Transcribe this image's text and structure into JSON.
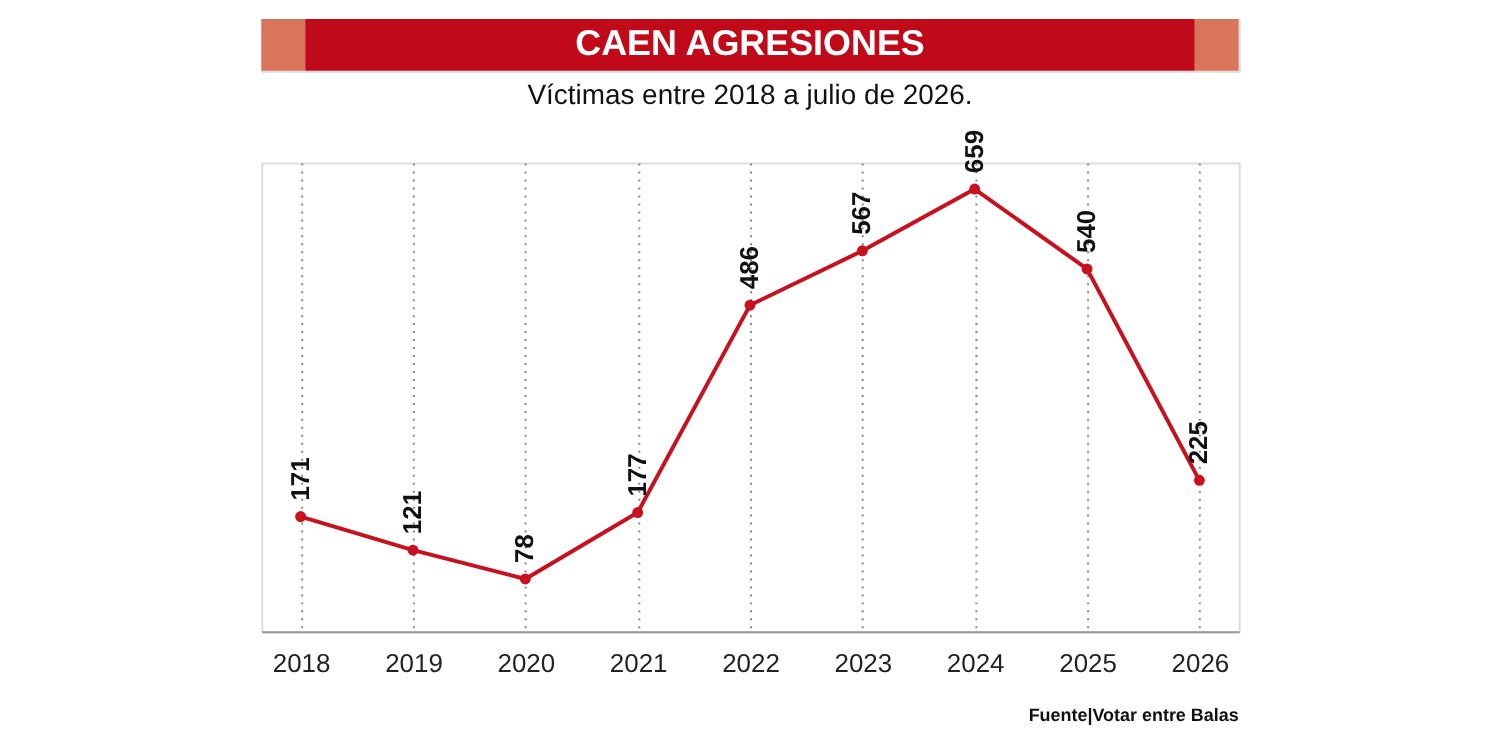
{
  "chart_data": {
    "type": "line",
    "title": "CAEN AGRESIONES",
    "subtitle": "Víctimas entre 2018 a julio de 2026.",
    "categories": [
      "2018",
      "2019",
      "2020",
      "2021",
      "2022",
      "2023",
      "2024",
      "2025",
      "2026"
    ],
    "series": [
      {
        "color": "#c8101e",
        "values": [
          171,
          121,
          78,
          177,
          486,
          567,
          659,
          540,
          225
        ]
      }
    ],
    "data_labels": true,
    "grid": "x",
    "marker": "circle",
    "line_style": "solid",
    "legend": false,
    "tick_labels": "x",
    "annotations": [
      "Fuente|Votar entre Balas"
    ]
  }
}
